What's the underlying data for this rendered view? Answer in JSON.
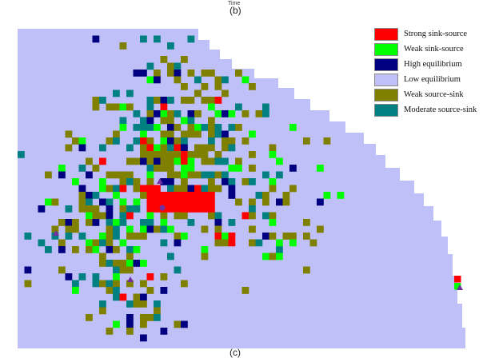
{
  "header": {
    "axis_label": "Time",
    "panel_label_top": "(b)",
    "panel_label_bottom": "(c)"
  },
  "legend": [
    {
      "label": "Strong sink-source",
      "color": "#ff0000"
    },
    {
      "label": "Weak sink-source",
      "color": "#00ff00"
    },
    {
      "label": "High equilibrium",
      "color": "#000080"
    },
    {
      "label": "Low equilibrium",
      "color": "#c0c0f8"
    },
    {
      "label": "Weak source-sink",
      "color": "#808000"
    },
    {
      "label": "Moderate source-sink",
      "color": "#008080"
    }
  ],
  "map": {
    "background_color": "#c0c0f8",
    "markers": [
      {
        "type": "triangle",
        "color": "#7030a0",
        "cell_color": "#ff0000"
      },
      {
        "type": "triangle",
        "color": "#7030a0",
        "cell_color": "#ff0000"
      },
      {
        "type": "triangle",
        "color": "#7030a0",
        "cell_color": "#ff0000"
      },
      {
        "type": "triangle",
        "color": "#7030a0",
        "cell_color": "#00ff00"
      },
      {
        "type": "circle",
        "color": "#7030a0",
        "cell_color": "#ff0000"
      }
    ]
  }
}
